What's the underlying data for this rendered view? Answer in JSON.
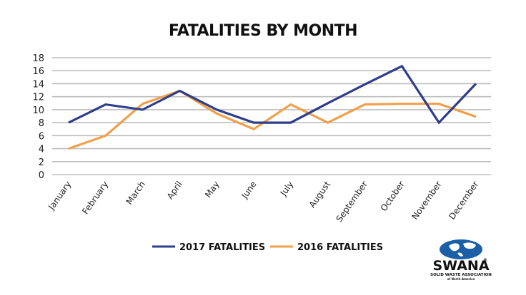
{
  "chart_data": {
    "type": "line",
    "title": "FATALITIES BY MONTH",
    "xlabel": "",
    "ylabel": "",
    "categories": [
      "January",
      "February",
      "March",
      "April",
      "May",
      "June",
      "July",
      "August",
      "September",
      "October",
      "November",
      "December"
    ],
    "series": [
      {
        "name": "2017 FATALITIES",
        "color": "#2e3d8c",
        "values": [
          8,
          10.8,
          10,
          12.9,
          10,
          8,
          8,
          11,
          13.9,
          16.7,
          8,
          14
        ]
      },
      {
        "name": "2016 FATALITIES",
        "color": "#f0a04b",
        "values": [
          4,
          6,
          10.9,
          12.9,
          9.4,
          7,
          10.8,
          8,
          10.8,
          10.9,
          10.9,
          8.9
        ]
      }
    ],
    "yticks": [
      0,
      2,
      4,
      6,
      8,
      10,
      12,
      14,
      16,
      18
    ],
    "ylim": [
      0,
      18
    ],
    "grid": true,
    "legend_position": "bottom-center"
  },
  "logo": {
    "name": "SWANA",
    "registered": "®",
    "subtitle": "SOLID WASTE ASSOCIATION",
    "subtitle2": "of North America"
  }
}
